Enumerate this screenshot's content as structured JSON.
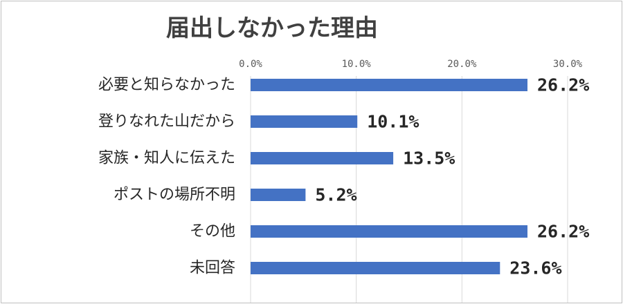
{
  "chart_data": {
    "type": "bar",
    "orientation": "horizontal",
    "title": "届出しなかった理由",
    "categories": [
      "必要と知らなかった",
      "登りなれた山だから",
      "家族・知人に伝えた",
      "ポストの場所不明",
      "その他",
      "未回答"
    ],
    "values": [
      26.2,
      10.1,
      13.5,
      5.2,
      26.2,
      23.6
    ],
    "value_labels": [
      "26.2%",
      "10.1%",
      "13.5%",
      "5.2%",
      "26.2%",
      "23.6%"
    ],
    "xlim": [
      0,
      30
    ],
    "xticks": [
      0,
      10,
      20,
      30
    ],
    "xtick_labels": [
      "0.0%",
      "10.0%",
      "20.0%",
      "30.0%"
    ],
    "xaxis_position": "top",
    "grid": true,
    "legend": "none",
    "bar_color": "#4472c4"
  }
}
